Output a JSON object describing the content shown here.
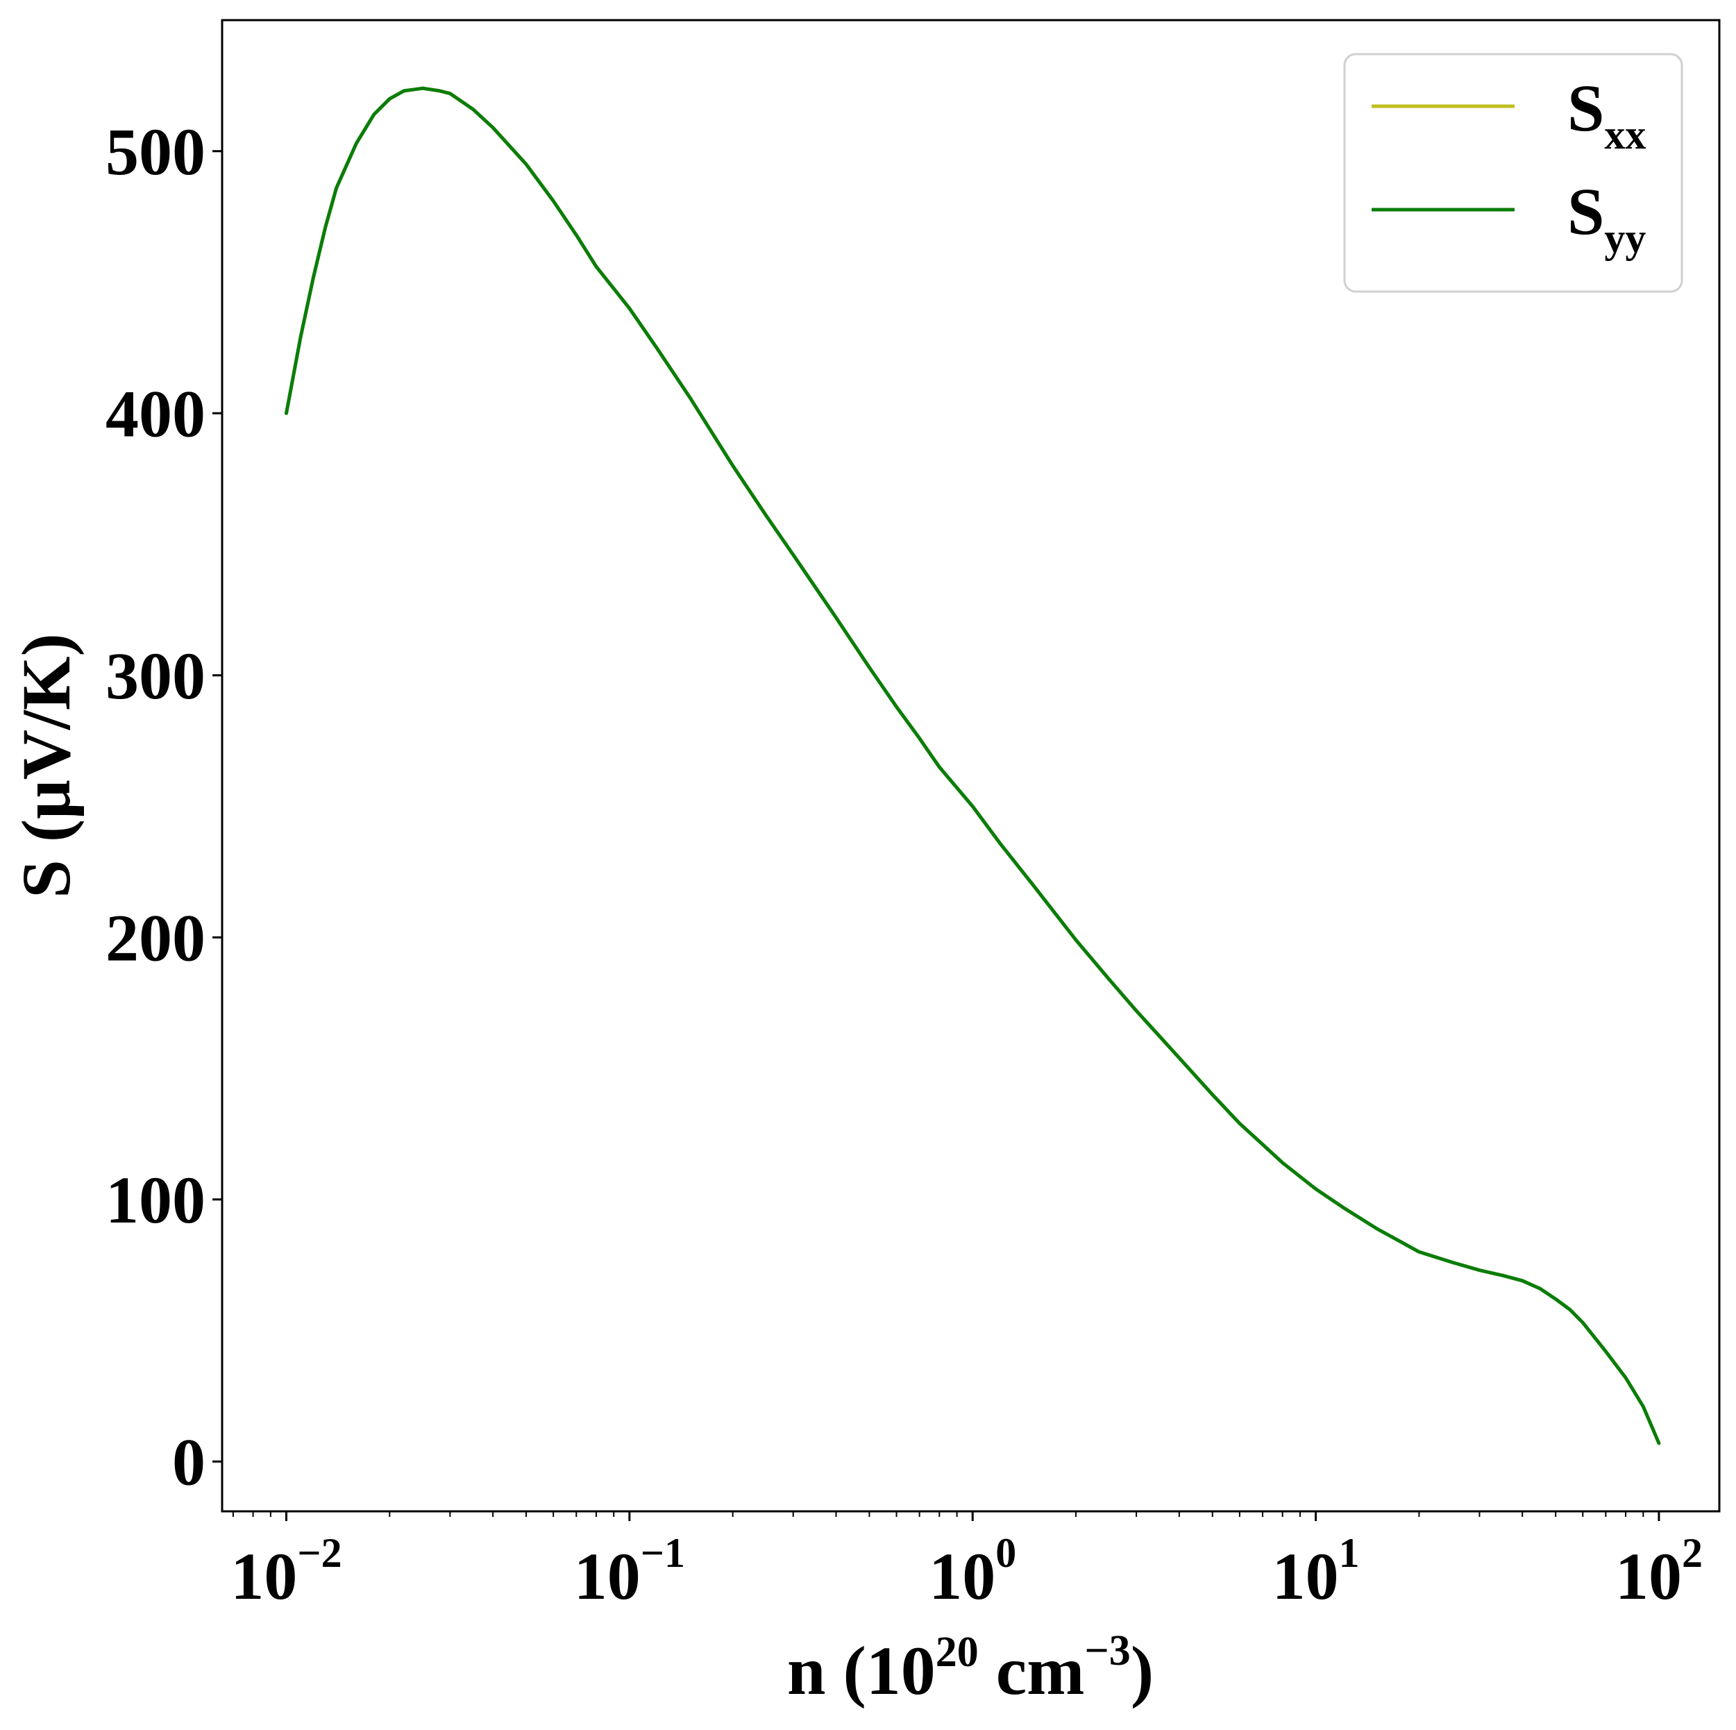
{
  "chart_data": {
    "type": "line",
    "xscale": "log",
    "xlim": [
      0.0065,
      150
    ],
    "ylim": [
      -19,
      550
    ],
    "xlabel": {
      "base": "n (10",
      "sup": "20",
      "mid": " cm",
      "sup2": "−3",
      "end": ")"
    },
    "ylabel": "S (μV/K)",
    "grid": false,
    "legend_position": "top-right",
    "x_ticks": [
      {
        "value": 0.01,
        "base": "10",
        "exp": "−2"
      },
      {
        "value": 0.1,
        "base": "10",
        "exp": "−1"
      },
      {
        "value": 1,
        "base": "10",
        "exp": "0"
      },
      {
        "value": 10,
        "base": "10",
        "exp": "1"
      },
      {
        "value": 100,
        "base": "10",
        "exp": "2"
      }
    ],
    "y_ticks": [
      {
        "value": 0,
        "label": "0"
      },
      {
        "value": 100,
        "label": "100"
      },
      {
        "value": 200,
        "label": "200"
      },
      {
        "value": 300,
        "label": "300"
      },
      {
        "value": 400,
        "label": "400"
      },
      {
        "value": 500,
        "label": "500"
      }
    ],
    "series": [
      {
        "name": "S",
        "sub": "xx",
        "color": "#bfbf1f",
        "x": [
          0.01,
          0.011,
          0.012,
          0.013,
          0.014,
          0.016,
          0.018,
          0.02,
          0.022,
          0.025,
          0.028,
          0.03,
          0.035,
          0.04,
          0.05,
          0.06,
          0.07,
          0.08,
          0.1,
          0.12,
          0.15,
          0.2,
          0.25,
          0.3,
          0.4,
          0.5,
          0.6,
          0.7,
          0.8,
          1,
          1.2,
          1.5,
          2,
          2.5,
          3,
          4,
          5,
          6,
          7,
          8,
          10,
          12,
          15,
          20,
          25,
          30,
          35,
          40,
          45,
          50,
          55,
          60,
          70,
          80,
          90,
          100
        ],
        "y": [
          400,
          429,
          452,
          471,
          486,
          503,
          514,
          520,
          523,
          524,
          523,
          522,
          516,
          509,
          495,
          481,
          468,
          456,
          440,
          425,
          406,
          380,
          361,
          346,
          322,
          303,
          288,
          276,
          265,
          250,
          236,
          220,
          199,
          184,
          172,
          154,
          140,
          129,
          121,
          114,
          104,
          97,
          89,
          80,
          76,
          73,
          71,
          69,
          66,
          62,
          58,
          53,
          42,
          32,
          21,
          7
        ]
      },
      {
        "name": "S",
        "sub": "yy",
        "color": "#0a7d0a",
        "x": [
          0.01,
          0.011,
          0.012,
          0.013,
          0.014,
          0.016,
          0.018,
          0.02,
          0.022,
          0.025,
          0.028,
          0.03,
          0.035,
          0.04,
          0.05,
          0.06,
          0.07,
          0.08,
          0.1,
          0.12,
          0.15,
          0.2,
          0.25,
          0.3,
          0.4,
          0.5,
          0.6,
          0.7,
          0.8,
          1,
          1.2,
          1.5,
          2,
          2.5,
          3,
          4,
          5,
          6,
          7,
          8,
          10,
          12,
          15,
          20,
          25,
          30,
          35,
          40,
          45,
          50,
          55,
          60,
          70,
          80,
          90,
          100
        ],
        "y": [
          400,
          429,
          452,
          471,
          486,
          503,
          514,
          520,
          523,
          524,
          523,
          522,
          516,
          509,
          495,
          481,
          468,
          456,
          440,
          425,
          406,
          380,
          361,
          346,
          322,
          303,
          288,
          276,
          265,
          250,
          236,
          220,
          199,
          184,
          172,
          154,
          140,
          129,
          121,
          114,
          104,
          97,
          89,
          80,
          76,
          73,
          71,
          69,
          66,
          62,
          58,
          53,
          42,
          32,
          21,
          7
        ]
      }
    ]
  }
}
